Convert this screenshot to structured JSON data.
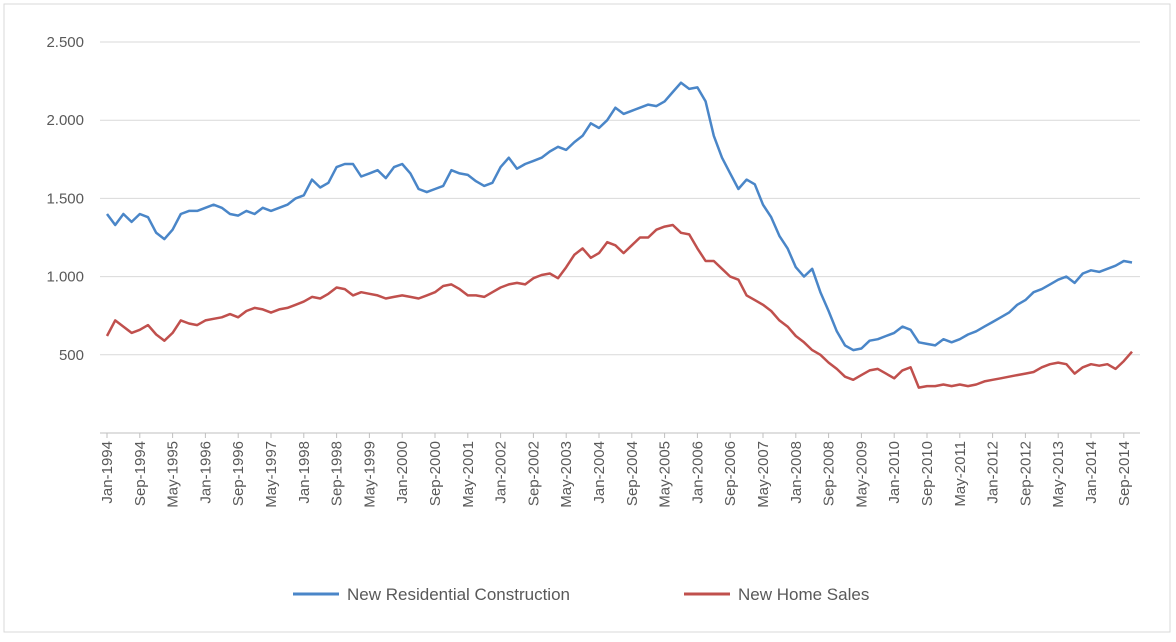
{
  "chart_data": {
    "type": "line",
    "categories": [
      "Jan-1994",
      null,
      null,
      null,
      "Sep-1994",
      null,
      null,
      null,
      "May-1995",
      null,
      null,
      null,
      "Jan-1996",
      null,
      null,
      null,
      "Sep-1996",
      null,
      null,
      null,
      "May-1997",
      null,
      null,
      null,
      "Jan-1998",
      null,
      null,
      null,
      "Sep-1998",
      null,
      null,
      null,
      "May-1999",
      null,
      null,
      null,
      "Jan-2000",
      null,
      null,
      null,
      "Sep-2000",
      null,
      null,
      null,
      "May-2001",
      null,
      null,
      null,
      "Jan-2002",
      null,
      null,
      null,
      "Sep-2002",
      null,
      null,
      null,
      "May-2003",
      null,
      null,
      null,
      "Jan-2004",
      null,
      null,
      null,
      "Sep-2004",
      null,
      null,
      null,
      "May-2005",
      null,
      null,
      null,
      "Jan-2006",
      null,
      null,
      null,
      "Sep-2006",
      null,
      null,
      null,
      "May-2007",
      null,
      null,
      null,
      "Jan-2008",
      null,
      null,
      null,
      "Sep-2008",
      null,
      null,
      null,
      "May-2009",
      null,
      null,
      null,
      "Jan-2010",
      null,
      null,
      null,
      "Sep-2010",
      null,
      null,
      null,
      "May-2011",
      null,
      null,
      null,
      "Jan-2012",
      null,
      null,
      null,
      "Sep-2012",
      null,
      null,
      null,
      "May-2013",
      null,
      null,
      null,
      "Jan-2014",
      null,
      null,
      null,
      "Sep-2014",
      null
    ],
    "series": [
      {
        "name": "New Residential Construction",
        "color": "#4a86c8",
        "values": [
          1400,
          1330,
          1400,
          1350,
          1400,
          1380,
          1280,
          1240,
          1300,
          1400,
          1420,
          1420,
          1440,
          1460,
          1440,
          1400,
          1390,
          1420,
          1400,
          1440,
          1420,
          1440,
          1460,
          1500,
          1520,
          1620,
          1570,
          1600,
          1700,
          1720,
          1720,
          1640,
          1660,
          1680,
          1630,
          1700,
          1720,
          1660,
          1560,
          1540,
          1560,
          1580,
          1680,
          1660,
          1650,
          1610,
          1580,
          1600,
          1700,
          1760,
          1690,
          1720,
          1740,
          1760,
          1800,
          1830,
          1810,
          1860,
          1900,
          1980,
          1950,
          2000,
          2080,
          2040,
          2060,
          2080,
          2100,
          2090,
          2120,
          2180,
          2240,
          2200,
          2210,
          2120,
          1900,
          1760,
          1660,
          1560,
          1620,
          1590,
          1460,
          1380,
          1260,
          1180,
          1060,
          1000,
          1050,
          900,
          780,
          650,
          560,
          530,
          540,
          590,
          600,
          620,
          640,
          680,
          660,
          580,
          570,
          560,
          600,
          580,
          600,
          630,
          650,
          680,
          710,
          740,
          770,
          820,
          850,
          900,
          920,
          950,
          980,
          1000,
          960,
          1020,
          1040,
          1030,
          1050,
          1070,
          1100,
          1090
        ]
      },
      {
        "name": "New Home Sales",
        "color": "#c0504d",
        "values": [
          620,
          720,
          680,
          640,
          660,
          690,
          630,
          590,
          640,
          720,
          700,
          690,
          720,
          730,
          740,
          760,
          740,
          780,
          800,
          790,
          770,
          790,
          800,
          820,
          840,
          870,
          860,
          890,
          930,
          920,
          880,
          900,
          890,
          880,
          860,
          870,
          880,
          870,
          860,
          880,
          900,
          940,
          950,
          920,
          880,
          880,
          870,
          900,
          930,
          950,
          960,
          950,
          990,
          1010,
          1020,
          990,
          1060,
          1140,
          1180,
          1120,
          1150,
          1220,
          1200,
          1150,
          1200,
          1250,
          1250,
          1300,
          1320,
          1330,
          1280,
          1270,
          1180,
          1100,
          1100,
          1050,
          1000,
          980,
          880,
          850,
          820,
          780,
          720,
          680,
          620,
          580,
          530,
          500,
          450,
          410,
          360,
          340,
          370,
          400,
          410,
          380,
          350,
          400,
          420,
          290,
          300,
          300,
          310,
          300,
          310,
          300,
          310,
          330,
          340,
          350,
          360,
          370,
          380,
          390,
          420,
          440,
          450,
          440,
          380,
          420,
          440,
          430,
          440,
          410,
          460,
          520
        ]
      }
    ],
    "ylim": [
      0,
      2500
    ],
    "yticks": [
      {
        "value": 500,
        "label": "500"
      },
      {
        "value": 1000,
        "label": "1.000"
      },
      {
        "value": 1500,
        "label": "1.500"
      },
      {
        "value": 2000,
        "label": "2.000"
      },
      {
        "value": 2500,
        "label": "2.500"
      }
    ],
    "grid": true,
    "legend": "bottom"
  }
}
